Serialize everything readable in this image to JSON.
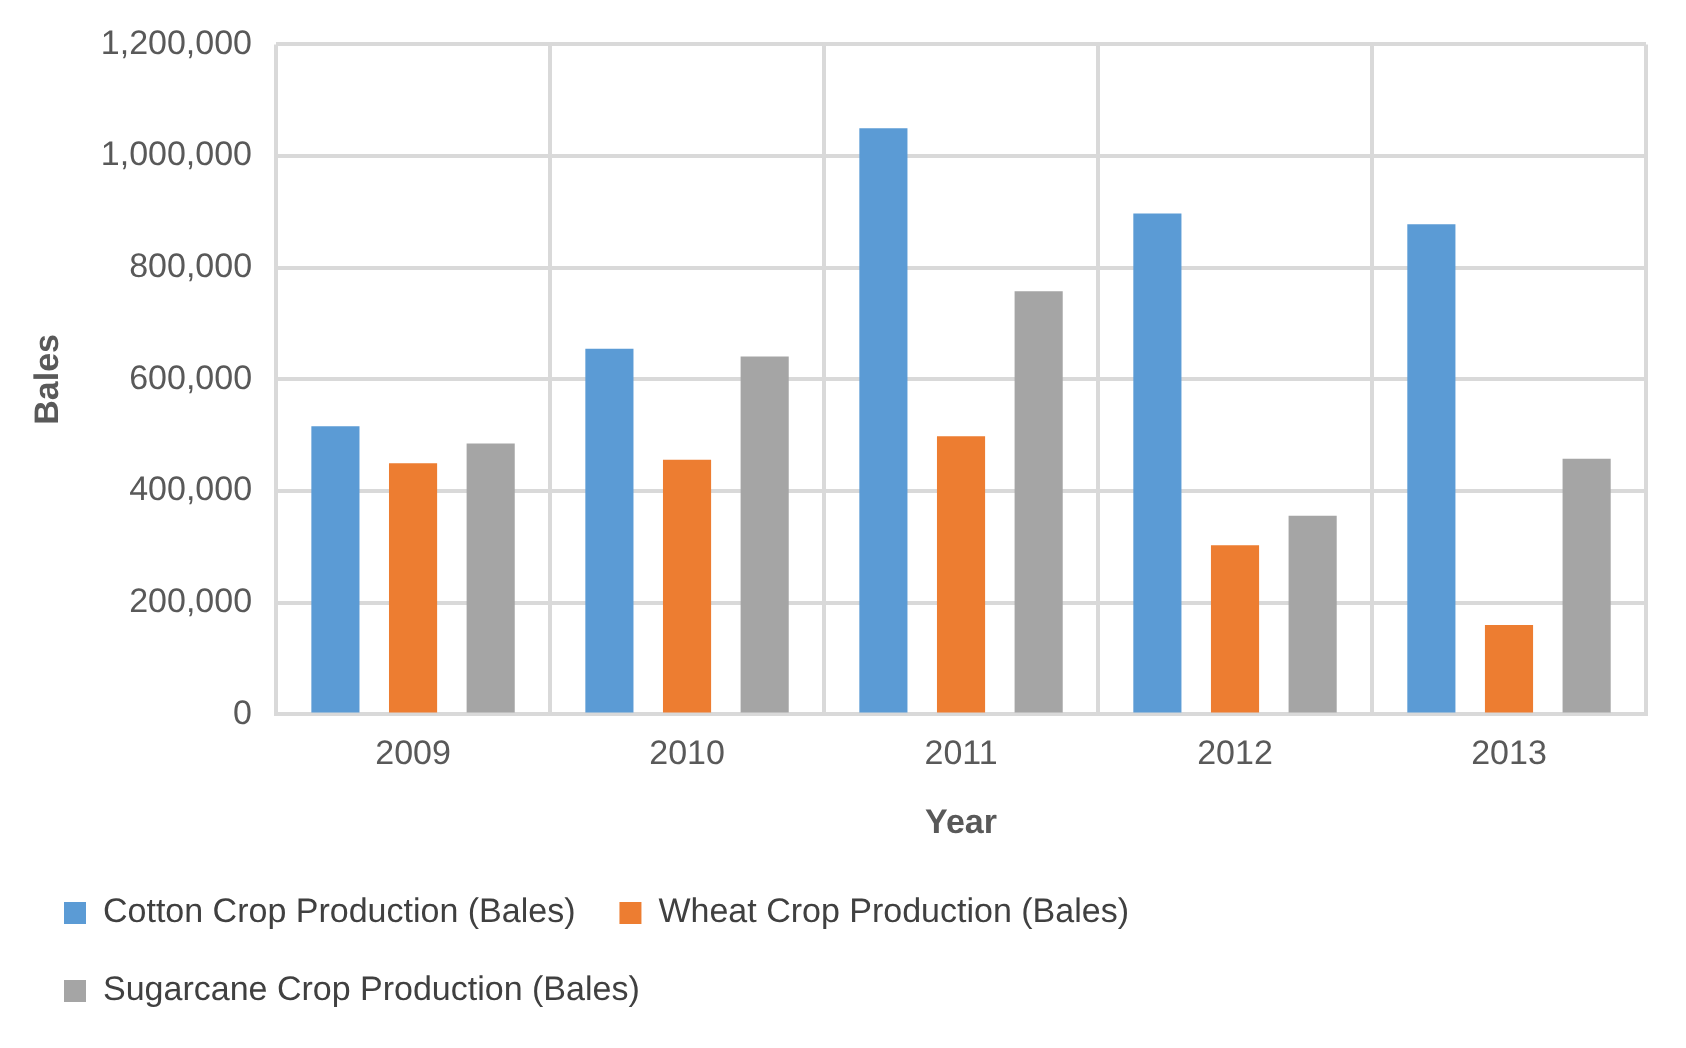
{
  "chart_data": {
    "type": "bar",
    "xlabel": "Year",
    "ylabel": "Bales",
    "categories": [
      "2009",
      "2010",
      "2011",
      "2012",
      "2013"
    ],
    "series": [
      {
        "name": "Cotton Crop Production (Bales)",
        "color": "#5b9bd5",
        "values": [
          516000,
          655000,
          1050000,
          897000,
          878000
        ]
      },
      {
        "name": "Wheat Crop Production (Bales)",
        "color": "#ed7d31",
        "values": [
          450000,
          456000,
          498000,
          303000,
          160000
        ]
      },
      {
        "name": "Sugarcane Crop Production (Bales)",
        "color": "#a5a5a5",
        "values": [
          485000,
          641000,
          758000,
          356000,
          458000
        ]
      }
    ],
    "ylim": [
      0,
      1200000
    ],
    "yticks": [
      0,
      {
        "value": 200000,
        "label": "200,000"
      },
      {
        "value": 400000,
        "label": "400,000"
      },
      {
        "value": 600000,
        "label": "600,000"
      },
      {
        "value": 800000,
        "label": "800,000"
      },
      {
        "value": 1000000,
        "label": "1,000,000"
      },
      {
        "value": 1200000,
        "label": "1,200,000"
      }
    ],
    "grid": true,
    "legend": "bottom"
  }
}
